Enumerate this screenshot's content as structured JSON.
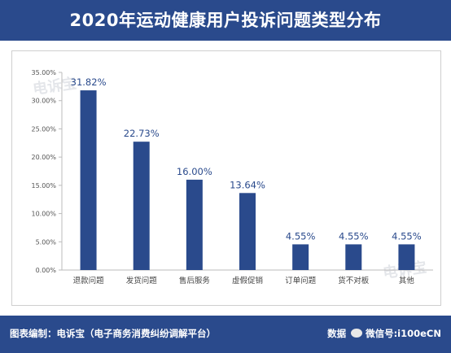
{
  "title": "2020年运动健康用户投诉问题类型分布",
  "footer": {
    "credit": "图表编制：电诉宝（电子商务消费纠纷调解平台）",
    "source_label": "数据",
    "wechat": "微信号:i100eCN"
  },
  "watermark": "电诉宝",
  "chart_data": {
    "type": "bar",
    "title": "2020年运动健康用户投诉问题类型分布",
    "xlabel": "",
    "ylabel": "",
    "categories": [
      "退款问题",
      "发货问题",
      "售后服务",
      "虚假促销",
      "订单问题",
      "货不对板",
      "其他"
    ],
    "values": [
      31.82,
      22.73,
      16.0,
      13.64,
      4.55,
      4.55,
      4.55
    ],
    "value_labels": [
      "31.82%",
      "22.73%",
      "16.00%",
      "13.64%",
      "4.55%",
      "4.55%",
      "4.55%"
    ],
    "ylim": [
      0,
      35
    ],
    "yticks": [
      "0.00%",
      "5.00%",
      "10.00%",
      "15.00%",
      "20.00%",
      "25.00%",
      "30.00%",
      "35.00%"
    ],
    "grid": false,
    "legend": "none",
    "colors": {
      "bar": "#2a4a8c",
      "header": "#2a4a8c",
      "label": "#2a4a8c",
      "axis_text": "#555555"
    }
  }
}
